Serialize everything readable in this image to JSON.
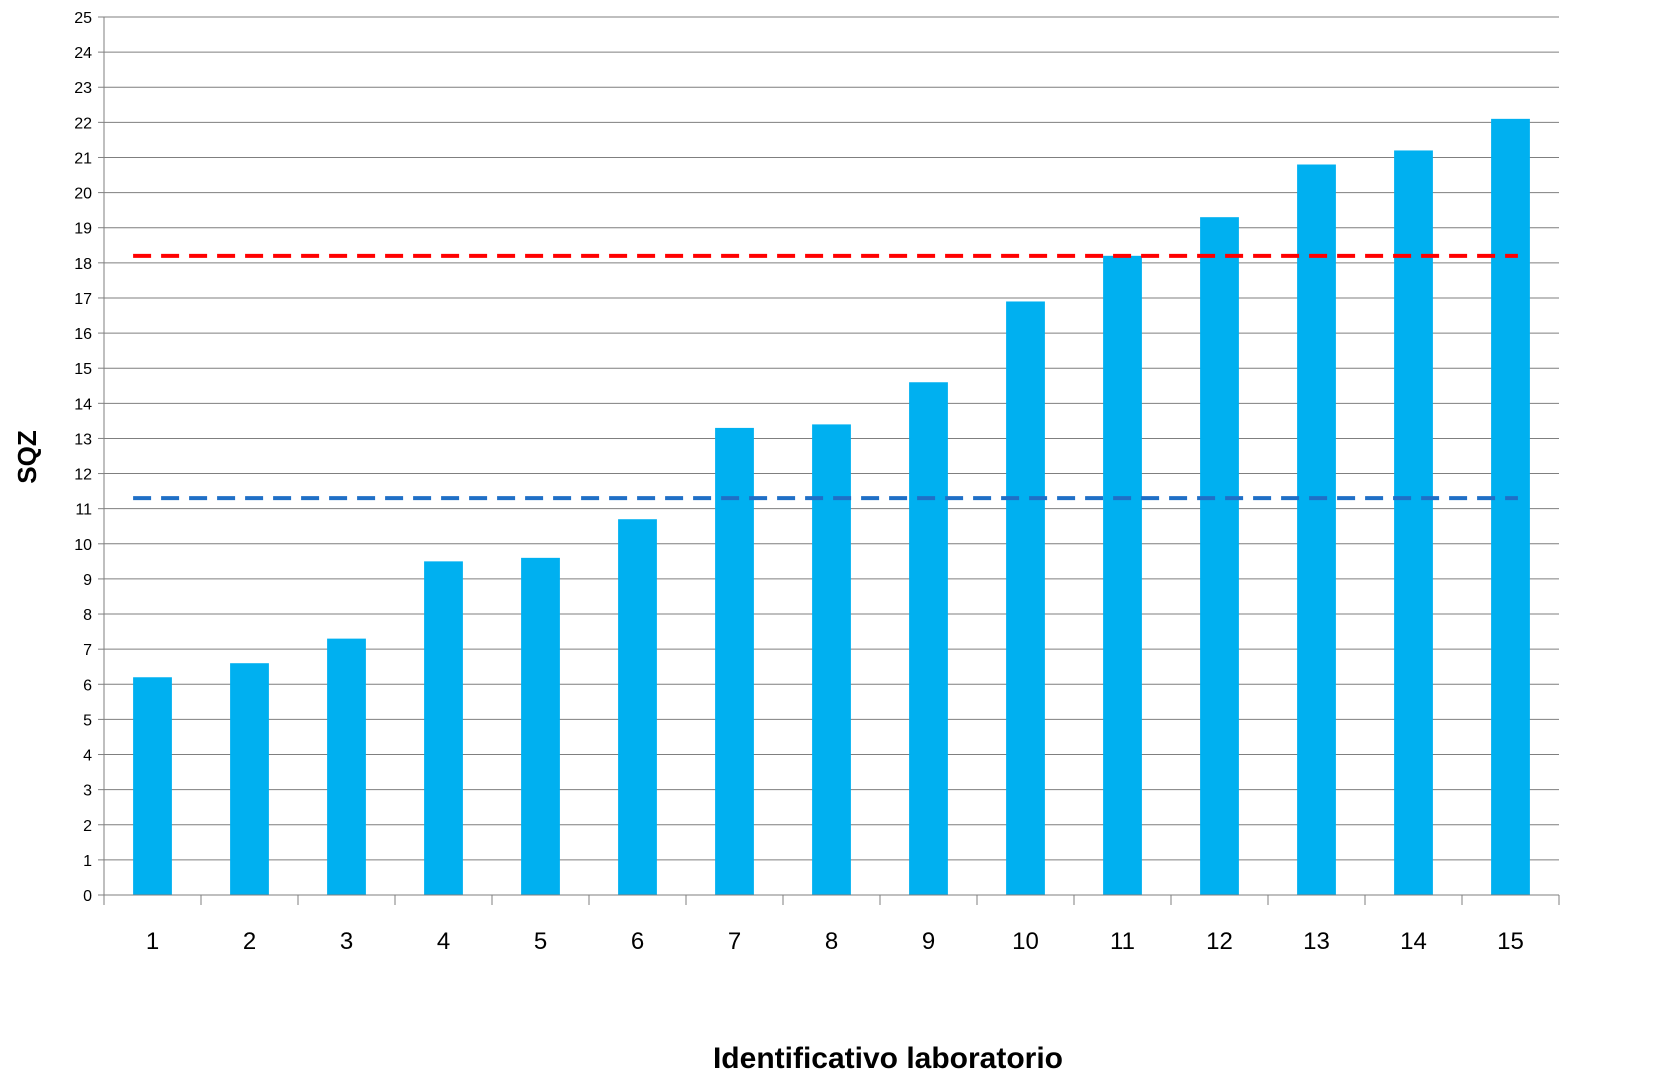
{
  "chart_data": {
    "type": "bar",
    "title": "",
    "xlabel": "Identificativo laboratorio",
    "ylabel": "SQZ",
    "categories": [
      "1",
      "2",
      "3",
      "4",
      "5",
      "6",
      "7",
      "8",
      "9",
      "10",
      "11",
      "12",
      "13",
      "14",
      "15"
    ],
    "values": [
      6.2,
      6.6,
      7.3,
      9.5,
      9.6,
      10.7,
      13.3,
      13.4,
      14.6,
      16.9,
      18.2,
      19.3,
      20.8,
      21.2,
      22.1
    ],
    "ylim": [
      0,
      25
    ],
    "ytick_step": 1,
    "grid": true,
    "legend": "none",
    "reference_lines": [
      {
        "y": 18.2,
        "style": "dashed",
        "color": "#ff0000"
      },
      {
        "y": 11.3,
        "style": "dashed",
        "color": "#1f6fc6"
      }
    ],
    "colors": {
      "bar": "#00b0f0",
      "grid": "#7f7f7f",
      "axis": "#7f7f7f"
    }
  }
}
